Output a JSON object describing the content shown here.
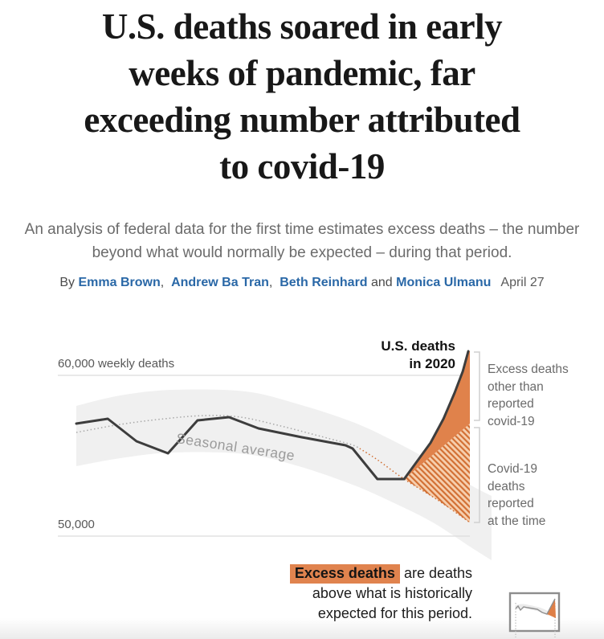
{
  "article": {
    "headline": "U.S. deaths soared in early\nweeks of pandemic, far\nexceeding number attributed\nto covid-19",
    "subtitle": "An analysis of federal data for the first time estimates excess deaths – the number\nbeyond what would normally be expected – during that period.",
    "byline": {
      "prefix": "By ",
      "authors": [
        "Emma Brown",
        "Andrew Ba Tran",
        "Beth Reinhard",
        "Monica Ulmanu"
      ],
      "separators": [
        ",  ",
        ",  ",
        " and "
      ],
      "date": "April 27"
    }
  },
  "chart_data": {
    "type": "line",
    "title_annotation": "U.S. deaths\nin 2020",
    "x_unit": "weeks, January to late April 2020 (no tick labels shown)",
    "y_axis": {
      "unit": "weekly deaths",
      "ylim": [
        48500,
        62000
      ],
      "labels": [
        {
          "value": 60000,
          "label": "60,000 weekly deaths"
        },
        {
          "value": 50000,
          "label": "50,000"
        }
      ]
    },
    "series": [
      {
        "name": "U.S. deaths in 2020",
        "style": "solid",
        "color": "#3d3d3d",
        "x": [
          0,
          0.08,
          0.153,
          0.233,
          0.308,
          0.388,
          0.463,
          0.573,
          0.684,
          0.702,
          0.765,
          0.833,
          0.9,
          0.933,
          0.961,
          0.982,
          0.996
        ],
        "values": [
          57000,
          57300,
          55900,
          55150,
          57200,
          57400,
          56700,
          56150,
          55650,
          55450,
          53550,
          53550,
          55800,
          57300,
          58900,
          60250,
          61500
        ]
      },
      {
        "name": "Seasonal average",
        "style": "dotted",
        "color": "#a8a8a8",
        "x": [
          0,
          0.112,
          0.224,
          0.327,
          0.418,
          0.52,
          0.622,
          0.698,
          0.72
        ],
        "values": [
          56450,
          56950,
          57300,
          57500,
          57400,
          56850,
          56200,
          55700,
          55450
        ]
      },
      {
        "name": "Seasonal average (excess period)",
        "style": "dotted",
        "color": "#d06f33",
        "x": [
          0.72,
          0.765,
          0.833,
          0.918,
          1.0
        ],
        "values": [
          55450,
          54750,
          53550,
          52250,
          50850
        ]
      },
      {
        "name": "Historical seasonal range band",
        "style": "band",
        "color": "#f0f0f0",
        "x": [
          0,
          0.112,
          0.245,
          0.429,
          0.565,
          0.702,
          0.804,
          0.906,
          1.0,
          1.055
        ],
        "top_values": [
          58100,
          58750,
          59100,
          59000,
          58200,
          57100,
          55950,
          54600,
          53200,
          52500
        ],
        "bottom_values": [
          54350,
          54850,
          55200,
          55100,
          54350,
          53200,
          52100,
          50850,
          49350,
          48500
        ]
      }
    ],
    "split_boundary": {
      "note": "divides excess-death area: hatched below = covid-19 deaths reported, solid above = other excess deaths",
      "x": [
        0.833,
        1.0
      ],
      "values": [
        53550,
        57000
      ]
    },
    "annotations": {
      "seasonal_label": "Seasonal average",
      "excess_label": "Excess deaths\nother than\nreported\ncovid-19",
      "covid_label": "Covid-19\ndeaths\nreported\nat the time"
    },
    "caption": {
      "highlight": "Excess deaths",
      "line1_rest": " are deaths",
      "rest": "above what is historically\nexpected for this period."
    },
    "colors": {
      "excess_solid": "#e0824b",
      "hatch_stroke": "#d26f33",
      "hatch_bg": "#f6cfae",
      "line": "#3d3d3d",
      "band": "#f0f0f0",
      "highlight_bg": "#e0834e",
      "link_blue": "#2a68a7"
    }
  }
}
